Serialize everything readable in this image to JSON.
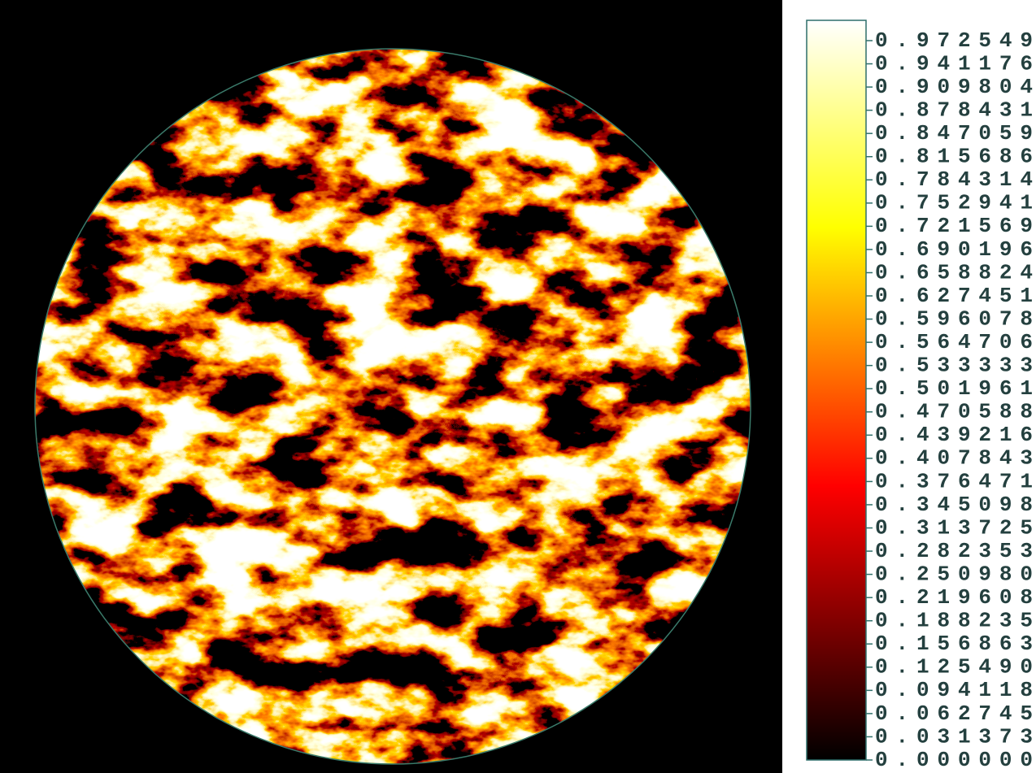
{
  "chart_data": {
    "type": "colorbar",
    "clim": [
      0,
      1
    ],
    "ticks": [
      {
        "value": 0,
        "label": "0.000000"
      },
      0.031373,
      0.062745,
      0.094118,
      {
        "value": 0.12549,
        "label": "0.125490"
      },
      0.156863,
      0.188235,
      0.219608,
      {
        "value": 0.25098,
        "label": "0.250980"
      },
      0.282353,
      0.313725,
      0.345098,
      0.376471,
      0.407843,
      0.439216,
      0.470588,
      0.501961,
      0.533333,
      0.564706,
      0.596078,
      0.627451,
      0.658824,
      0.690196,
      0.721569,
      0.752941,
      0.784314,
      0.815686,
      0.847059,
      0.878431,
      0.909804,
      0.941176,
      0.972549
    ]
  }
}
